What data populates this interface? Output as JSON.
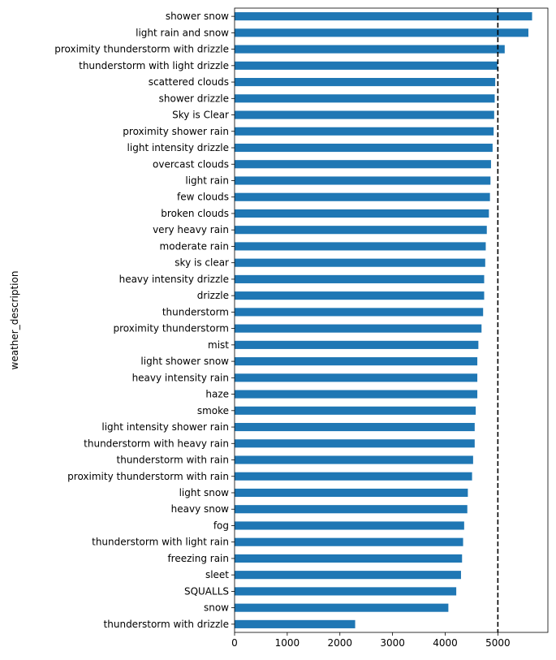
{
  "chart_data": {
    "type": "bar",
    "orientation": "horizontal",
    "ylabel": "weather_description",
    "xlabel": "",
    "xlim": [
      0,
      5950
    ],
    "xticks": [
      0,
      1000,
      2000,
      3000,
      4000,
      5000
    ],
    "reference_line": {
      "x": 5000,
      "style": "dashed",
      "color": "#000000"
    },
    "bar_color": "#1f77b4",
    "grid": false,
    "categories": [
      "shower snow",
      "light rain and snow",
      "proximity thunderstorm with drizzle",
      "thunderstorm with light drizzle",
      "scattered clouds",
      "shower drizzle",
      "Sky is Clear",
      "proximity shower rain",
      "light intensity drizzle",
      "overcast clouds",
      "light rain",
      "few clouds",
      "broken clouds",
      "very heavy rain",
      "moderate rain",
      "sky is clear",
      "heavy intensity drizzle",
      "drizzle",
      "thunderstorm",
      "proximity thunderstorm",
      "mist",
      "light shower snow",
      "heavy intensity rain",
      "haze",
      "smoke",
      "light intensity shower rain",
      "thunderstorm with heavy rain",
      "thunderstorm with rain",
      "proximity thunderstorm with rain",
      "light snow",
      "heavy snow",
      "fog",
      "thunderstorm with light rain",
      "freezing rain",
      "sleet",
      "SQUALLS",
      "snow",
      "thunderstorm with drizzle"
    ],
    "values": [
      5650,
      5580,
      5130,
      4990,
      4950,
      4940,
      4930,
      4920,
      4900,
      4870,
      4860,
      4850,
      4830,
      4790,
      4770,
      4760,
      4740,
      4740,
      4720,
      4690,
      4630,
      4610,
      4610,
      4610,
      4580,
      4560,
      4560,
      4530,
      4510,
      4430,
      4420,
      4360,
      4340,
      4320,
      4300,
      4210,
      4060,
      2290
    ]
  }
}
